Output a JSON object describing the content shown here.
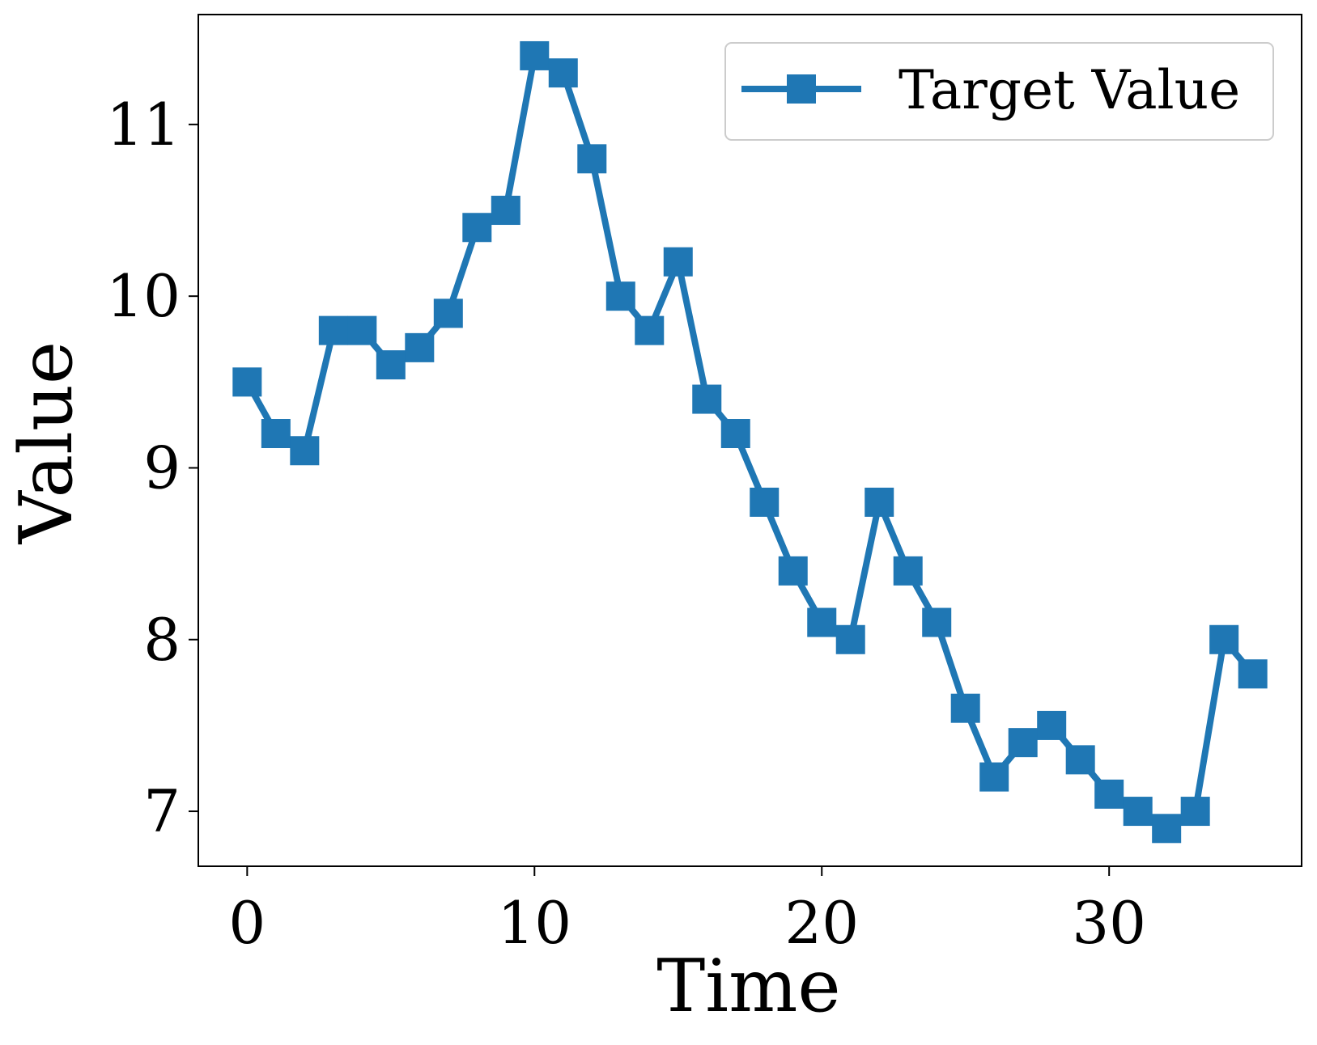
{
  "chart_data": {
    "type": "line",
    "xlabel": "Time",
    "ylabel": "Value",
    "xlim": [
      -1.7,
      36.7
    ],
    "ylim": [
      6.68,
      11.64
    ],
    "xticks": [
      0,
      10,
      20,
      30
    ],
    "yticks": [
      7,
      8,
      9,
      10,
      11
    ],
    "grid": false,
    "legend_position": "top-right",
    "series": [
      {
        "name": "Target Value",
        "color": "#1f77b4",
        "marker": "square",
        "x": [
          0,
          1,
          2,
          3,
          4,
          5,
          6,
          7,
          8,
          9,
          10,
          11,
          12,
          13,
          14,
          15,
          16,
          17,
          18,
          19,
          20,
          21,
          22,
          23,
          24,
          25,
          26,
          27,
          28,
          29,
          30,
          31,
          32,
          33,
          34,
          35
        ],
        "values": [
          9.5,
          9.2,
          9.1,
          9.8,
          9.8,
          9.6,
          9.7,
          9.9,
          10.4,
          10.5,
          11.4,
          11.3,
          10.8,
          10.0,
          9.8,
          10.2,
          9.4,
          9.2,
          8.8,
          8.4,
          8.1,
          8.0,
          8.8,
          8.4,
          8.1,
          7.6,
          7.2,
          7.4,
          7.5,
          7.3,
          7.1,
          7.0,
          6.9,
          7.0,
          8.0,
          7.8
        ]
      }
    ]
  }
}
